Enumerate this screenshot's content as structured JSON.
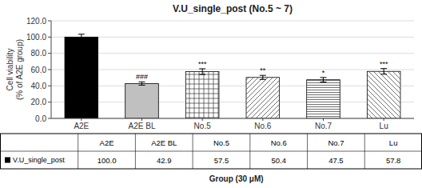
{
  "chart_data": {
    "type": "bar",
    "title": "V.U_single_post (No.5 ~ 7)",
    "xlabel": "Group (30 μM)",
    "ylabel": "Cell viability\n(% of A2E group)",
    "categories": [
      "A2E",
      "A2E BL",
      "No.5",
      "No.6",
      "No.7",
      "Lu"
    ],
    "series": [
      {
        "name": "V.U_single_post",
        "values": [
          100.0,
          42.9,
          57.5,
          50.4,
          47.5,
          57.8
        ],
        "errors": [
          3.5,
          2.0,
          3.5,
          2.5,
          2.8,
          3.5
        ],
        "value_labels": [
          "100.0",
          "42.9",
          "57.5",
          "50.4",
          "47.5",
          "57.8"
        ],
        "colors": [
          "#000000",
          "#c0c0c0",
          "#ffffff",
          "#ffffff",
          "#ffffff",
          "#ffffff"
        ]
      }
    ],
    "annotations": [
      null,
      "###",
      "***",
      "**",
      "*",
      "***"
    ],
    "ylim": [
      0,
      120
    ],
    "yticks": [
      {
        "value": 0,
        "label": "0.0"
      },
      {
        "value": 20,
        "label": "20.0"
      },
      {
        "value": 40,
        "label": "40.0"
      },
      {
        "value": 60,
        "label": "60.0"
      },
      {
        "value": 80,
        "label": "80.0"
      },
      {
        "value": 100,
        "label": "100.0"
      },
      {
        "value": 120,
        "label": "120.0"
      }
    ],
    "grid": true
  }
}
